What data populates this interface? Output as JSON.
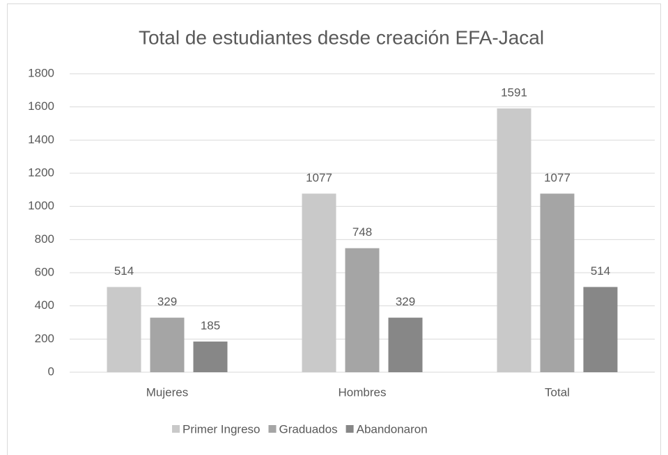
{
  "chart_data": {
    "type": "bar",
    "title": "Total de estudiantes desde creación EFA-Jacal",
    "categories": [
      "Mujeres",
      "Hombres",
      "Total"
    ],
    "series": [
      {
        "name": "Primer Ingreso",
        "color": "#c9c9c9",
        "values": [
          514,
          1077,
          1591
        ]
      },
      {
        "name": "Graduados",
        "color": "#a5a5a5",
        "values": [
          329,
          748,
          1077
        ]
      },
      {
        "name": "Abandonaron",
        "color": "#878787",
        "values": [
          185,
          329,
          514
        ]
      }
    ],
    "ylim": [
      0,
      1800
    ],
    "yticks": [
      0,
      200,
      400,
      600,
      800,
      1000,
      1200,
      1400,
      1600,
      1800
    ],
    "grid": true,
    "legend": "bottom"
  }
}
